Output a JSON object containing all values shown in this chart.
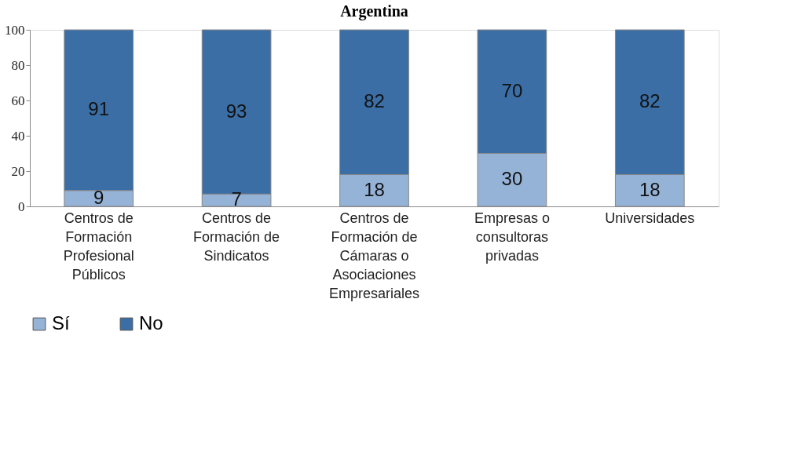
{
  "chart_data": {
    "type": "bar",
    "title": "Argentina",
    "stacked": true,
    "data_labels": true,
    "legend": "bottom",
    "grid": false,
    "categories": [
      "Centros de Formación Profesional Públicos",
      "Centros de Formación de Sindicatos",
      "Centros de Formación de Cámaras o Asociaciones Empresariales",
      "Empresas o consultoras privadas",
      "Universidades"
    ],
    "series": [
      {
        "name": "Sí",
        "color": "#95b3d7",
        "values": [
          9,
          7,
          18,
          30,
          18
        ]
      },
      {
        "name": "No",
        "color": "#3a6ea5",
        "values": [
          91,
          93,
          82,
          70,
          82
        ]
      }
    ],
    "ylim": [
      0,
      100
    ],
    "yticks": [
      0,
      20,
      40,
      60,
      80,
      100
    ]
  }
}
